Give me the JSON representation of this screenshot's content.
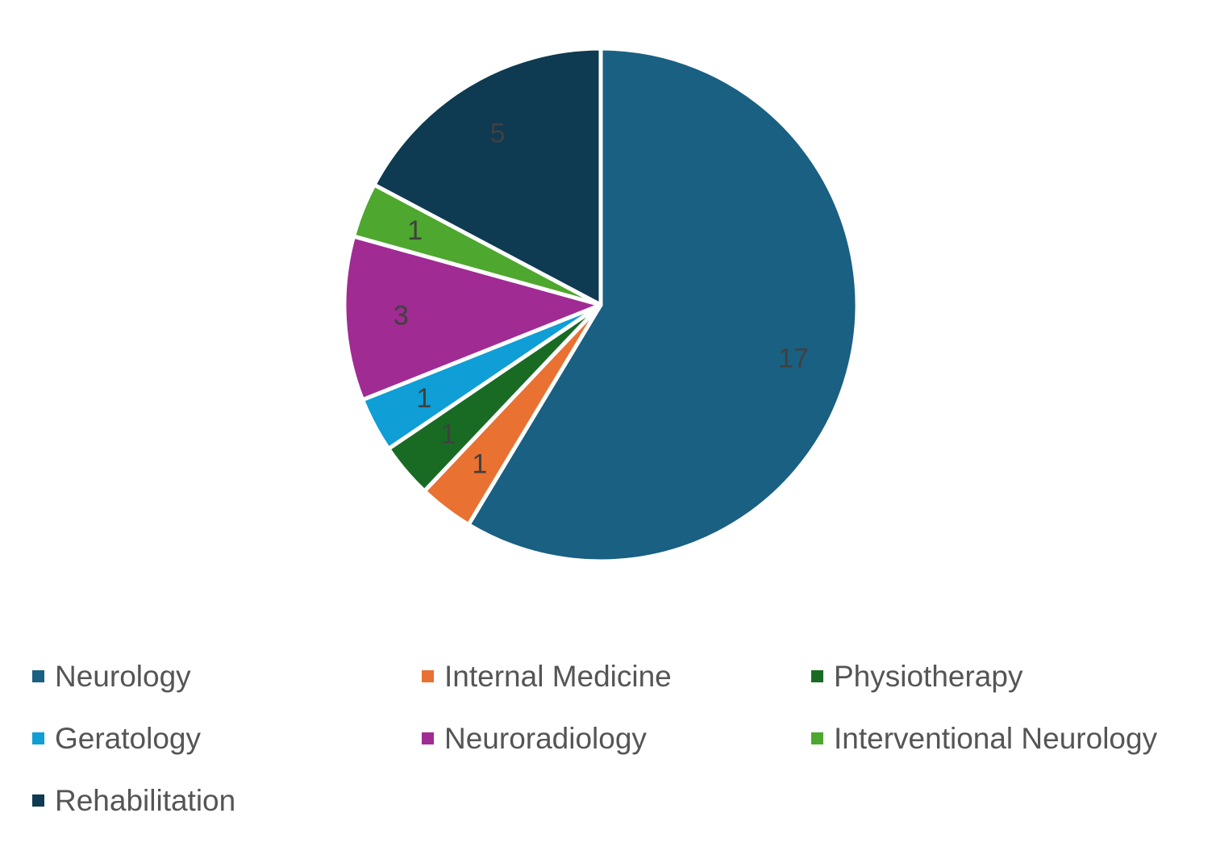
{
  "chart_data": {
    "type": "pie",
    "title": "",
    "categories": [
      "Neurology",
      "Internal Medicine",
      "Physiotherapy",
      "Geratology",
      "Neuroradiology",
      "Interventional Neurology",
      "Rehabilitation"
    ],
    "values": [
      17,
      1,
      1,
      1,
      3,
      1,
      5
    ],
    "colors": [
      "#196083",
      "#E97132",
      "#196B24",
      "#0F9ED5",
      "#A02B93",
      "#4EA72E",
      "#0E3A52"
    ],
    "label_colors": [
      "#3A3A3A",
      "#3A3A3A",
      "#3A3A3A",
      "#3A3A3A",
      "#3A3A3A",
      "#3A3A3A",
      "#3A3A3A"
    ],
    "start_angle": "12 o'clock",
    "direction": "clockwise",
    "data_labels": true,
    "legend_position": "bottom"
  }
}
